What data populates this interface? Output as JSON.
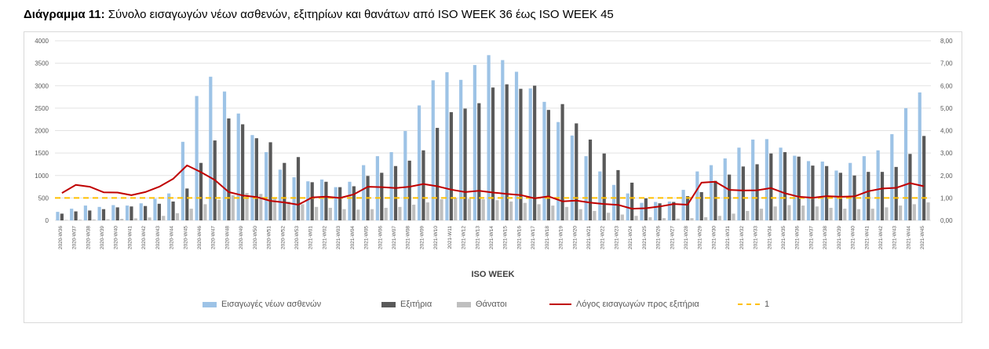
{
  "title": {
    "prefix": "Διάγραμμα 11:",
    "text": "Σύνολο εισαγωγών νέων ασθενών, εξιτηρίων και θανάτων από ISO WEEK 36 έως ISO WEEK 45"
  },
  "chart_data": {
    "type": "bar",
    "xlabel": "ISO WEEK",
    "ylabel": "",
    "ylim": [
      0,
      4000
    ],
    "y2lim": [
      0,
      8
    ],
    "yticks": [
      "0",
      "500",
      "1000",
      "1500",
      "2000",
      "2500",
      "3000",
      "3500",
      "4000"
    ],
    "y2ticks": [
      "0,00",
      "1,00",
      "2,00",
      "3,00",
      "4,00",
      "5,00",
      "6,00",
      "7,00",
      "8,00"
    ],
    "grid": true,
    "legend_position": "bottom",
    "categories": [
      "2020-W36",
      "2020-W37",
      "2020-W38",
      "2020-W39",
      "2020-W40",
      "2020-W41",
      "2020-W42",
      "2020-W43",
      "2020-W44",
      "2020-W45",
      "2020-W46",
      "2020-W47",
      "2020-W48",
      "2020-W49",
      "2020-W50",
      "2020-W51",
      "2020-W52",
      "2020-W53",
      "2021-W01",
      "2021-W02",
      "2021-W03",
      "2021-W04",
      "2021-W05",
      "2021-W06",
      "2021-W07",
      "2021-W08",
      "2021-W09",
      "2021-W10",
      "2021-W11",
      "2021-W12",
      "2021-W13",
      "2021-W14",
      "2021-W15",
      "2021-W16",
      "2021-W17",
      "2021-W18",
      "2021-W19",
      "2021-W20",
      "2021-W21",
      "2021-W22",
      "2021-W23",
      "2021-W24",
      "2021-W25",
      "2021-W26",
      "2021-W27",
      "2021-W28",
      "2021-W29",
      "2021-W30",
      "2021-W31",
      "2021-W32",
      "2021-W33",
      "2021-W34",
      "2021-W35",
      "2021-W36",
      "2021-W37",
      "2021-W38",
      "2021-W39",
      "2021-W40",
      "2021-W41",
      "2021-W42",
      "2021-W43",
      "2021-W44",
      "2021-W45"
    ],
    "series": [
      {
        "name": "Εισαγωγές νέων ασθενών",
        "kind": "bar",
        "axis": "left",
        "color": "#9dc3e6",
        "values": [
          190,
          260,
          330,
          300,
          340,
          330,
          380,
          480,
          600,
          1750,
          2770,
          3200,
          2870,
          2380,
          1900,
          1520,
          1130,
          960,
          870,
          910,
          740,
          860,
          1230,
          1430,
          1520,
          1990,
          2560,
          3120,
          3300,
          3130,
          3460,
          3680,
          3570,
          3310,
          2940,
          2640,
          2190,
          1890,
          1430,
          1090,
          790,
          600,
          390,
          410,
          420,
          680,
          1090,
          1230,
          1380,
          1620,
          1800,
          1810,
          1620,
          1440,
          1320,
          1310,
          1110,
          1280,
          1430,
          1560,
          1920,
          2500,
          2850
        ]
      },
      {
        "name": "Εξιτήρια",
        "kind": "bar",
        "axis": "left",
        "color": "#595959",
        "values": [
          150,
          200,
          220,
          250,
          290,
          310,
          320,
          370,
          420,
          710,
          1280,
          1780,
          2270,
          2140,
          1830,
          1740,
          1280,
          1410,
          850,
          860,
          740,
          760,
          990,
          1060,
          1210,
          1330,
          1560,
          2060,
          2410,
          2490,
          2610,
          2960,
          3030,
          2930,
          3000,
          2460,
          2590,
          2160,
          1800,
          1490,
          1120,
          840,
          490,
          380,
          410,
          540,
          630,
          880,
          1020,
          1200,
          1250,
          1490,
          1520,
          1420,
          1220,
          1210,
          1060,
          1000,
          1080,
          1080,
          1190,
          1480,
          1880
        ]
      },
      {
        "name": "Θάνατοι",
        "kind": "bar",
        "axis": "left",
        "color": "#bfbfbf",
        "values": [
          10,
          15,
          20,
          25,
          35,
          45,
          65,
          100,
          160,
          260,
          360,
          460,
          560,
          610,
          590,
          500,
          420,
          360,
          300,
          280,
          250,
          240,
          250,
          280,
          300,
          350,
          400,
          470,
          500,
          480,
          470,
          450,
          420,
          390,
          360,
          330,
          300,
          250,
          210,
          170,
          130,
          100,
          70,
          50,
          40,
          50,
          70,
          100,
          150,
          210,
          260,
          310,
          340,
          330,
          310,
          280,
          260,
          250,
          260,
          290,
          330,
          360,
          400
        ]
      },
      {
        "name": "Λόγος εισαγωγών προς εξιτήρια",
        "kind": "line",
        "axis": "right",
        "color": "#c00000",
        "values": [
          1.22,
          1.58,
          1.5,
          1.25,
          1.24,
          1.12,
          1.26,
          1.5,
          1.85,
          2.45,
          2.15,
          1.8,
          1.26,
          1.11,
          1.04,
          0.87,
          0.8,
          0.7,
          1.02,
          1.06,
          1.0,
          1.16,
          1.5,
          1.48,
          1.44,
          1.5,
          1.62,
          1.52,
          1.37,
          1.26,
          1.32,
          1.24,
          1.18,
          1.13,
          0.98,
          1.07,
          0.85,
          0.88,
          0.79,
          0.73,
          0.69,
          0.52,
          0.54,
          0.62,
          0.73,
          0.7,
          1.68,
          1.72,
          1.36,
          1.33,
          1.34,
          1.44,
          1.21,
          1.05,
          1.01,
          1.08,
          1.05,
          1.07,
          1.3,
          1.42,
          1.45,
          1.66,
          1.52
        ]
      },
      {
        "name": "1",
        "kind": "hline",
        "axis": "right",
        "color": "#ffc000",
        "value": 1
      }
    ]
  }
}
